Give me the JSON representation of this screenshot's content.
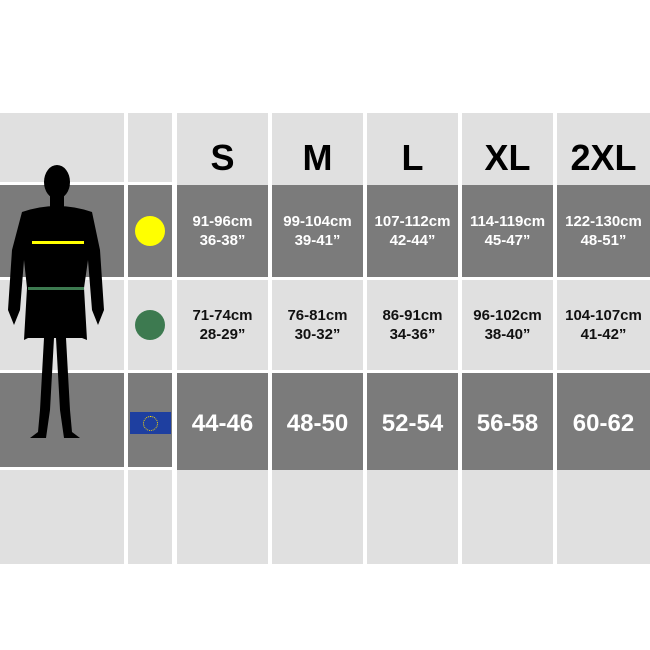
{
  "sizes": [
    "S",
    "M",
    "L",
    "XL",
    "2XL"
  ],
  "rows": [
    {
      "name": "chest",
      "indicator": "yellow-circle",
      "indicator_color": "#ffff00",
      "values": [
        [
          "91-96cm",
          "36-38”"
        ],
        [
          "99-104cm",
          "39-41”"
        ],
        [
          "107-112cm",
          "42-44”"
        ],
        [
          "114-119cm",
          "45-47”"
        ],
        [
          "122-130cm",
          "48-51”"
        ]
      ]
    },
    {
      "name": "waist",
      "indicator": "green-circle",
      "indicator_color": "#3d7a50",
      "values": [
        [
          "71-74cm",
          "28-29”"
        ],
        [
          "76-81cm",
          "30-32”"
        ],
        [
          "86-91cm",
          "34-36”"
        ],
        [
          "96-102cm",
          "38-40”"
        ],
        [
          "104-107cm",
          "41-42”"
        ]
      ]
    },
    {
      "name": "eu",
      "indicator": "eu-flag",
      "values": [
        "44-46",
        "48-50",
        "52-54",
        "56-58",
        "60-62"
      ]
    }
  ],
  "colors": {
    "light": "#e0e0e0",
    "dark": "#7b7b7b",
    "chest_line": "#ffff00",
    "waist_line": "#3d7a50",
    "flag": "#1e3fa0"
  }
}
